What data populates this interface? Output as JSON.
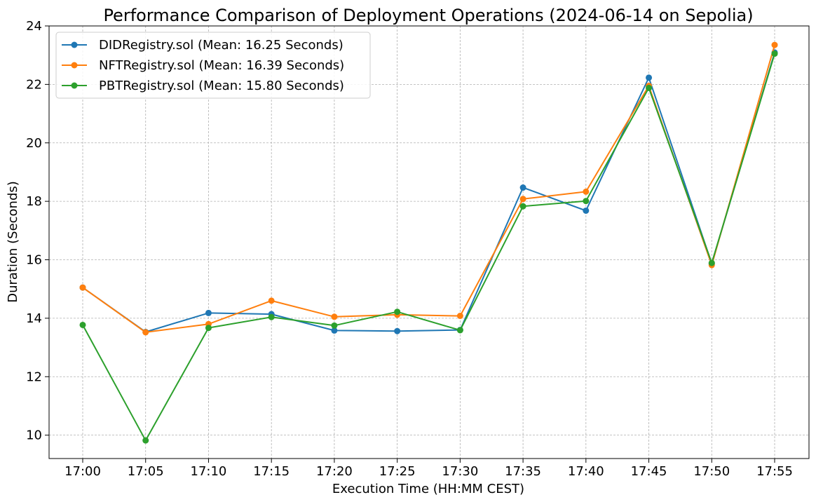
{
  "chart_data": {
    "type": "line",
    "title": "Performance Comparison of Deployment Operations (2024-06-14 on Sepolia)",
    "xlabel": "Execution Time (HH:MM CEST)",
    "ylabel": "Duration (Seconds)",
    "categories": [
      "17:00",
      "17:05",
      "17:10",
      "17:15",
      "17:20",
      "17:25",
      "17:30",
      "17:35",
      "17:40",
      "17:45",
      "17:50",
      "17:55"
    ],
    "ylim": [
      9.2,
      24.0
    ],
    "yticks": [
      10,
      12,
      14,
      16,
      18,
      20,
      22,
      24
    ],
    "grid": true,
    "legend_position": "top-left",
    "series": [
      {
        "name": "DIDRegistry.sol (Mean: 16.25 Seconds)",
        "color": "#1f77b4",
        "values": [
          15.05,
          13.53,
          14.18,
          14.14,
          13.58,
          13.56,
          13.6,
          18.47,
          17.68,
          22.23,
          15.87,
          23.09
        ]
      },
      {
        "name": "NFTRegistry.sol (Mean: 16.39 Seconds)",
        "color": "#ff7f0e",
        "values": [
          15.05,
          13.52,
          13.8,
          14.6,
          14.05,
          14.12,
          14.08,
          18.08,
          18.33,
          21.95,
          15.82,
          23.35
        ]
      },
      {
        "name": "PBTRegistry.sol (Mean: 15.80 Seconds)",
        "color": "#2ca02c",
        "values": [
          13.77,
          9.82,
          13.67,
          14.04,
          13.75,
          14.22,
          13.59,
          17.83,
          18.01,
          21.88,
          15.89,
          23.05
        ]
      }
    ]
  }
}
